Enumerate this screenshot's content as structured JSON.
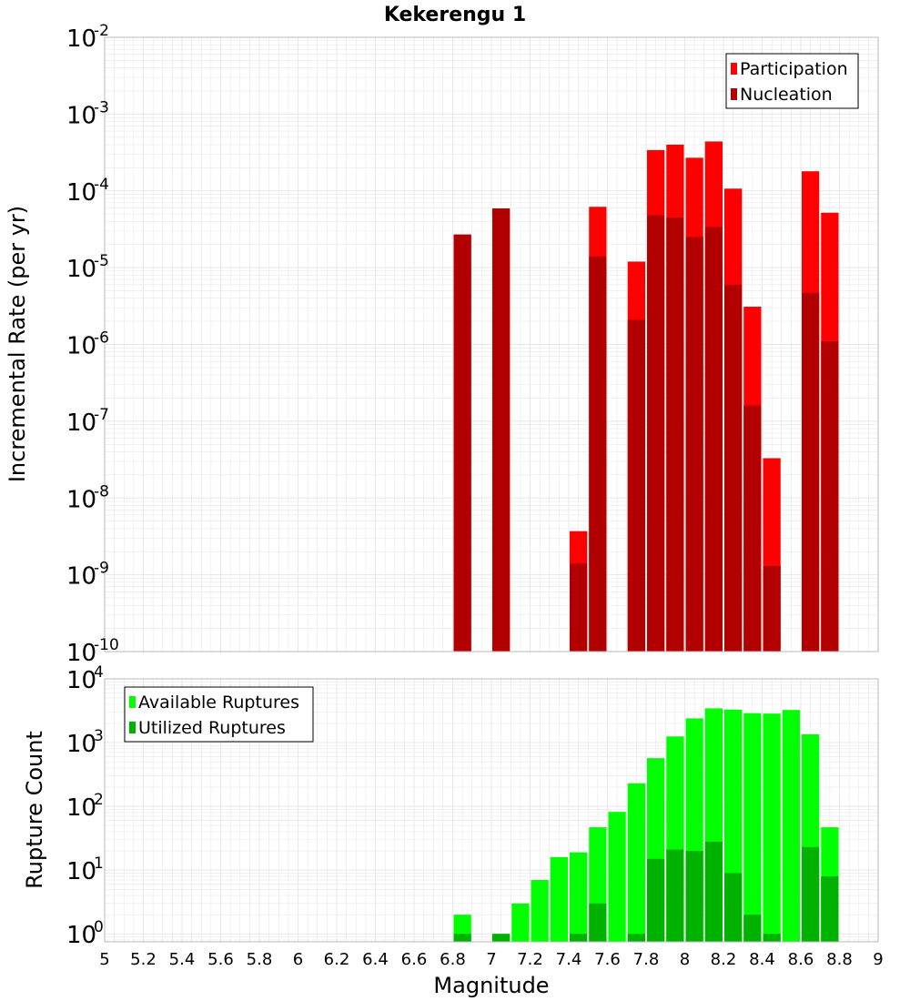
{
  "title": "Kekerengu 1",
  "xlabel": "Magnitude",
  "x_ticks": [
    "5",
    "5.2",
    "5.4",
    "5.6",
    "5.8",
    "6",
    "6.2",
    "6.4",
    "6.6",
    "6.8",
    "7",
    "7.2",
    "7.4",
    "7.6",
    "7.8",
    "8",
    "8.2",
    "8.4",
    "8.6",
    "8.8",
    "9"
  ],
  "colors": {
    "participation": "#ff0000",
    "nucleation": "#b20000",
    "available": "#00ff00",
    "utilized": "#00b200",
    "grid": "#e8e8e8",
    "frame": "#b8b8b8"
  },
  "chart_data": [
    {
      "type": "bar",
      "ylabel": "Incremental Rate (per yr)",
      "yscale": "log",
      "ylim": [
        1e-10,
        0.01
      ],
      "xlim": [
        5,
        9
      ],
      "y_tick_exponents": [
        "-2",
        "-3",
        "-4",
        "-5",
        "-6",
        "-7",
        "-8",
        "-9",
        "-10"
      ],
      "legend_position": "top-right",
      "series": [
        {
          "name": "Participation",
          "points": [
            {
              "x": 6.85,
              "y": 2.7e-05
            },
            {
              "x": 7.05,
              "y": 5.9e-05
            },
            {
              "x": 7.45,
              "y": 3.7e-09
            },
            {
              "x": 7.55,
              "y": 6.2e-05
            },
            {
              "x": 7.75,
              "y": 1.2e-05
            },
            {
              "x": 7.85,
              "y": 0.00034
            },
            {
              "x": 7.95,
              "y": 0.0004
            },
            {
              "x": 8.05,
              "y": 0.00027
            },
            {
              "x": 8.15,
              "y": 0.00044
            },
            {
              "x": 8.25,
              "y": 0.000107
            },
            {
              "x": 8.35,
              "y": 3.1e-06
            },
            {
              "x": 8.45,
              "y": 3.3e-08
            },
            {
              "x": 8.65,
              "y": 0.00018
            },
            {
              "x": 8.75,
              "y": 5.2e-05
            }
          ]
        },
        {
          "name": "Nucleation",
          "points": [
            {
              "x": 6.85,
              "y": 2.7e-05
            },
            {
              "x": 7.05,
              "y": 5.9e-05
            },
            {
              "x": 7.45,
              "y": 1.4e-09
            },
            {
              "x": 7.55,
              "y": 1.4e-05
            },
            {
              "x": 7.75,
              "y": 2.1e-06
            },
            {
              "x": 7.85,
              "y": 4.8e-05
            },
            {
              "x": 7.95,
              "y": 4.5e-05
            },
            {
              "x": 8.05,
              "y": 2.5e-05
            },
            {
              "x": 8.15,
              "y": 3.4e-05
            },
            {
              "x": 8.25,
              "y": 6e-06
            },
            {
              "x": 8.35,
              "y": 1.6e-07
            },
            {
              "x": 8.45,
              "y": 1.3e-09
            },
            {
              "x": 8.65,
              "y": 4.7e-06
            },
            {
              "x": 8.75,
              "y": 1.1e-06
            }
          ]
        }
      ]
    },
    {
      "type": "bar",
      "ylabel": "Rupture Count",
      "yscale": "log",
      "ylim": [
        0.75,
        10000
      ],
      "xlim": [
        5,
        9
      ],
      "y_tick_exponents": [
        "4",
        "3",
        "2",
        "1",
        "0"
      ],
      "legend_position": "top-left",
      "series": [
        {
          "name": "Available Ruptures",
          "points": [
            {
              "x": 6.85,
              "y": 2
            },
            {
              "x": 7.05,
              "y": 1
            },
            {
              "x": 7.15,
              "y": 3
            },
            {
              "x": 7.25,
              "y": 7
            },
            {
              "x": 7.35,
              "y": 16
            },
            {
              "x": 7.45,
              "y": 19
            },
            {
              "x": 7.55,
              "y": 47
            },
            {
              "x": 7.65,
              "y": 82
            },
            {
              "x": 7.75,
              "y": 230
            },
            {
              "x": 7.85,
              "y": 570
            },
            {
              "x": 7.95,
              "y": 1250
            },
            {
              "x": 8.05,
              "y": 2400
            },
            {
              "x": 8.15,
              "y": 3450
            },
            {
              "x": 8.25,
              "y": 3300
            },
            {
              "x": 8.35,
              "y": 2900
            },
            {
              "x": 8.45,
              "y": 2850
            },
            {
              "x": 8.55,
              "y": 3250
            },
            {
              "x": 8.65,
              "y": 1350
            },
            {
              "x": 8.75,
              "y": 47
            }
          ]
        },
        {
          "name": "Utilized Ruptures",
          "points": [
            {
              "x": 6.85,
              "y": 1
            },
            {
              "x": 7.05,
              "y": 1
            },
            {
              "x": 7.45,
              "y": 1
            },
            {
              "x": 7.55,
              "y": 3
            },
            {
              "x": 7.75,
              "y": 1
            },
            {
              "x": 7.85,
              "y": 15
            },
            {
              "x": 7.95,
              "y": 21
            },
            {
              "x": 8.05,
              "y": 20
            },
            {
              "x": 8.15,
              "y": 28
            },
            {
              "x": 8.25,
              "y": 9
            },
            {
              "x": 8.35,
              "y": 2
            },
            {
              "x": 8.45,
              "y": 1
            },
            {
              "x": 8.65,
              "y": 23
            },
            {
              "x": 8.75,
              "y": 8
            }
          ]
        }
      ]
    }
  ]
}
